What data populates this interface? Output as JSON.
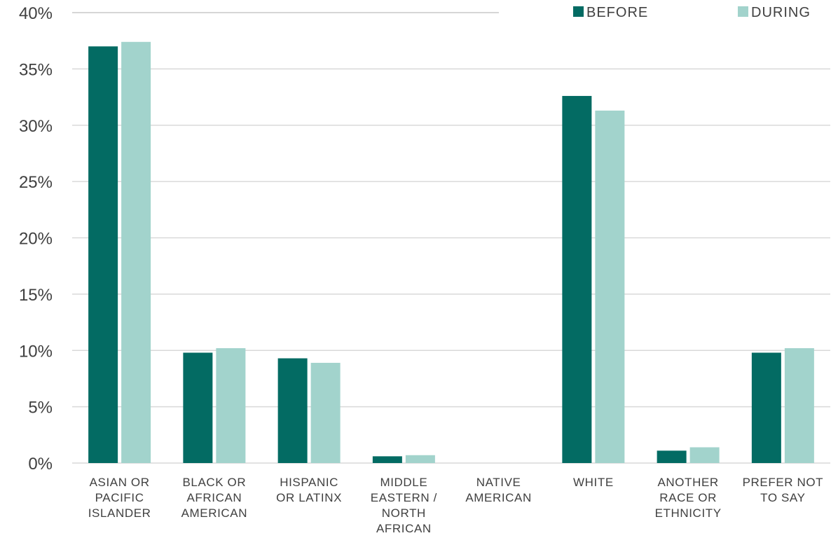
{
  "chart_data": {
    "type": "bar",
    "categories": [
      [
        "ASIAN OR",
        "PACIFIC",
        "ISLANDER"
      ],
      [
        "BLACK OR",
        "AFRICAN",
        "AMERICAN"
      ],
      [
        "HISPANIC",
        "OR LATINX"
      ],
      [
        "MIDDLE",
        "EASTERN /",
        "NORTH",
        "AFRICAN"
      ],
      [
        "NATIVE",
        "AMERICAN"
      ],
      [
        "WHITE"
      ],
      [
        "ANOTHER",
        "RACE OR",
        "ETHNICITY"
      ],
      [
        "PREFER NOT",
        "TO SAY"
      ]
    ],
    "series": [
      {
        "name": "BEFORE",
        "color": "#036b63",
        "values": [
          37.0,
          9.8,
          9.3,
          0.6,
          0,
          32.6,
          1.1,
          9.8
        ]
      },
      {
        "name": "DURING",
        "color": "#a2d3cc",
        "values": [
          37.4,
          10.2,
          8.9,
          0.7,
          0,
          31.3,
          1.4,
          10.2
        ]
      }
    ],
    "yticks": [
      "0%",
      "5%",
      "10%",
      "15%",
      "20%",
      "25%",
      "30%",
      "35%",
      "40%"
    ],
    "ylim": [
      0,
      40
    ],
    "grid": true,
    "legend_position": "top-right"
  }
}
